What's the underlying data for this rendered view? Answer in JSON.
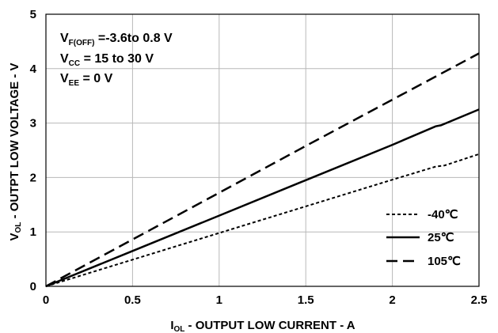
{
  "chart_data": {
    "type": "line",
    "title": "",
    "xlabel": {
      "prefix": "I",
      "sub": "OL",
      "rest": " - OUTPUT LOW CURRENT - A"
    },
    "ylabel": {
      "prefix": "V",
      "sub": "OL",
      "rest": " - OUTPT LOW VOLTAGE - V"
    },
    "xlim": [
      0,
      2.5
    ],
    "ylim": [
      0,
      5
    ],
    "xticks": [
      "0",
      "0.5",
      "1",
      "1.5",
      "2",
      "2.5"
    ],
    "yticks": [
      "0",
      "1",
      "2",
      "3",
      "4",
      "5"
    ],
    "grid": true,
    "legend_position": "bottom-right",
    "annotations": [
      {
        "prefix": "V",
        "sub": "F(OFF)",
        "rest": " =-3.6to 0.8 V"
      },
      {
        "prefix": "V",
        "sub": "CC",
        "rest": " = 15 to 30 V"
      },
      {
        "prefix": "V",
        "sub": "EE",
        "rest": " = 0 V"
      }
    ],
    "series": [
      {
        "name": "-40℃",
        "style": "dotted",
        "x": [
          0,
          0.5,
          1,
          1.5,
          2,
          2.25,
          2.3,
          2.5
        ],
        "y": [
          0,
          0.49,
          0.98,
          1.47,
          1.96,
          2.2,
          2.22,
          2.43
        ]
      },
      {
        "name": "25℃",
        "style": "solid",
        "x": [
          0,
          0.5,
          1,
          1.5,
          2,
          2.25,
          2.28,
          2.5
        ],
        "y": [
          0,
          0.65,
          1.3,
          1.95,
          2.6,
          2.94,
          2.96,
          3.25
        ]
      },
      {
        "name": "105℃",
        "style": "dashed",
        "x": [
          0,
          0.5,
          1,
          1.5,
          2,
          2.5
        ],
        "y": [
          0,
          0.86,
          1.72,
          2.58,
          3.43,
          4.28
        ]
      }
    ]
  }
}
